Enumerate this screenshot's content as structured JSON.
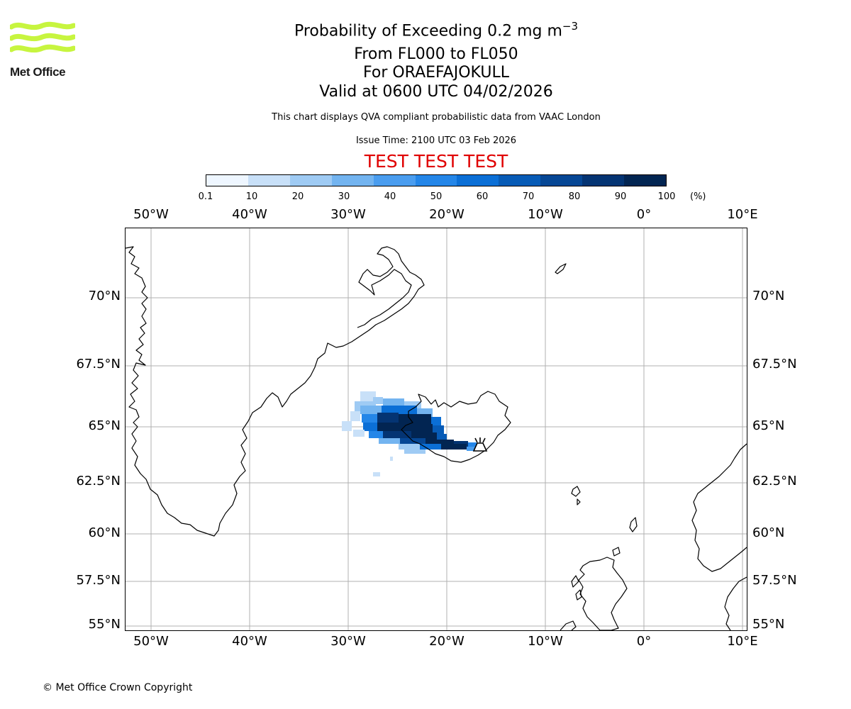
{
  "header": {
    "title_prefix": "Probability of Exceeding 0.2 mg m",
    "title_exponent": "−3",
    "flight_levels": "From FL000 to FL050",
    "volcano": "For ORAEFAJOKULL",
    "valid_time": "Valid at 0600 UTC 04/02/2026",
    "description": "This chart displays QVA compliant probabilistic data from VAAC London",
    "issue_time": "Issue Time: 2100 UTC 03 Feb 2026",
    "test_banner": "TEST TEST TEST"
  },
  "logo": {
    "text": "Met Office",
    "color": "#c7f53f"
  },
  "colorbar": {
    "unit": "(%)",
    "ticks": [
      "0.1",
      "10",
      "20",
      "30",
      "40",
      "50",
      "60",
      "70",
      "80",
      "90",
      "100"
    ],
    "colors": [
      "#eef6ff",
      "#c8e0f8",
      "#9fcbf4",
      "#73b4f0",
      "#4a9def",
      "#2486e8",
      "#0b6fd6",
      "#075bb6",
      "#064795",
      "#043473",
      "#022552"
    ]
  },
  "map": {
    "lon_labels": [
      "50°W",
      "40°W",
      "30°W",
      "20°W",
      "10°W",
      "0°",
      "10°E"
    ],
    "lat_labels": [
      "70°N",
      "67.5°N",
      "65°N",
      "62.5°N",
      "60°N",
      "57.5°N",
      "55°N"
    ],
    "volcano_symbol": "volcano-icon"
  },
  "footer": {
    "copyright": "© Met Office Crown Copyright"
  }
}
